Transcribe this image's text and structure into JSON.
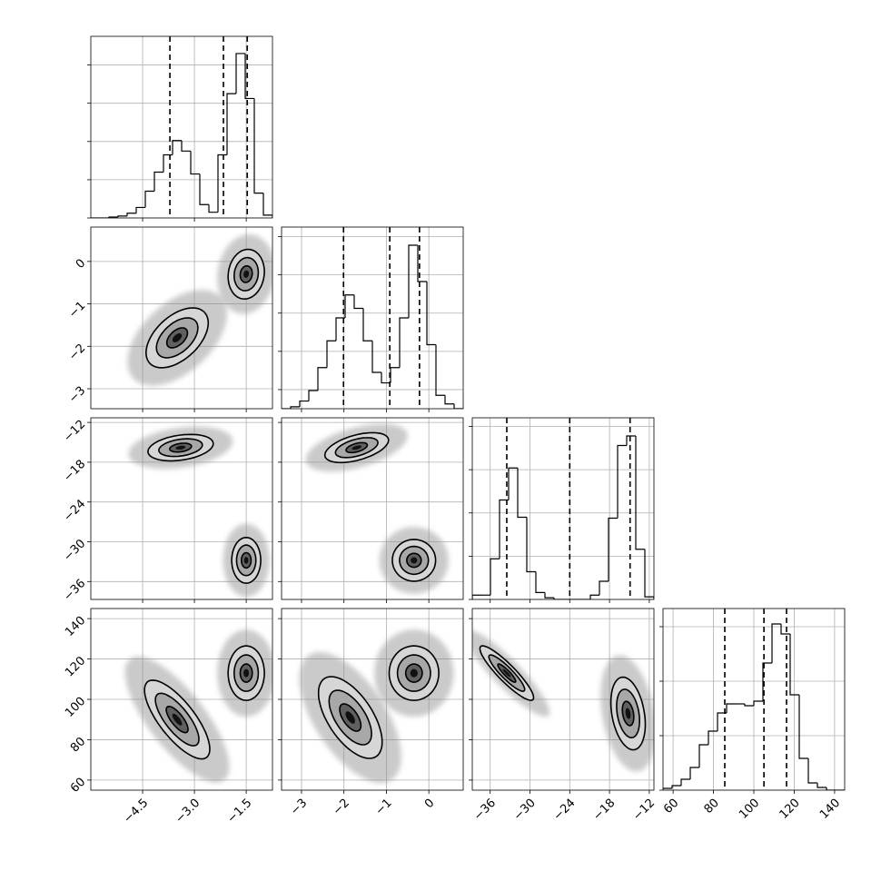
{
  "chart_data": {
    "type": "corner",
    "levels": [
      0.5,
      1.0,
      1.5
    ],
    "params": [
      {
        "lim": [
          -6.0,
          -0.74
        ],
        "ticks": [
          {
            "value": -4.5,
            "label": "−4.5"
          },
          {
            "value": -3.0,
            "label": "−3.0"
          },
          {
            "value": -1.5,
            "label": "−1.5"
          }
        ]
      },
      {
        "lim": [
          -3.47,
          0.81
        ],
        "ticks": [
          {
            "value": -3,
            "label": "−3"
          },
          {
            "value": -2,
            "label": "−2"
          },
          {
            "value": -1,
            "label": "−1"
          },
          0
        ]
      },
      {
        "lim": [
          -38.7,
          -11.3
        ],
        "ticks": [
          {
            "value": -36,
            "label": "−36"
          },
          {
            "value": -30,
            "label": "−30"
          },
          {
            "value": -24,
            "label": "−24"
          },
          {
            "value": -18,
            "label": "−18"
          },
          {
            "value": -12,
            "label": "−12"
          }
        ]
      },
      {
        "lim": [
          55,
          145
        ],
        "ticks": [
          60,
          80,
          100,
          120,
          140
        ]
      }
    ],
    "hists": [
      {
        "bins": [
          -6.0,
          -5.737,
          -5.474,
          -5.211,
          -4.948,
          -4.685,
          -4.422,
          -4.159,
          -3.896,
          -3.633,
          -3.37,
          -3.107,
          -2.844,
          -2.581,
          -2.318,
          -2.055,
          -1.792,
          -1.529,
          -1.266,
          -1.003,
          -0.74
        ],
        "counts": [
          0,
          0,
          1,
          2,
          5,
          11,
          28,
          48,
          66,
          81,
          70,
          46,
          14,
          6,
          66,
          130,
          172,
          125,
          26,
          3
        ],
        "quantiles": [
          -3.71,
          -2.16,
          -1.47
        ],
        "ylim": [
          0,
          190
        ],
        "yticks": [
          0,
          40,
          80,
          120,
          160
        ]
      },
      {
        "bins": [
          -3.47,
          -3.256,
          -3.042,
          -2.828,
          -2.614,
          -2.4,
          -2.186,
          -1.972,
          -1.758,
          -1.544,
          -1.33,
          -1.116,
          -0.902,
          -0.688,
          -0.474,
          -0.26,
          -0.046,
          0.168,
          0.382,
          0.596,
          0.81
        ],
        "counts": [
          0,
          2,
          8,
          19,
          43,
          71,
          95,
          119,
          105,
          71,
          38,
          27,
          43,
          95,
          171,
          133,
          67,
          14,
          5,
          0
        ],
        "quantiles": [
          -2.01,
          -0.92,
          -0.22
        ],
        "ylim": [
          0,
          190
        ],
        "yticks": [
          20,
          60,
          100,
          140,
          180
        ]
      },
      {
        "bins": [
          -38.7,
          -37.33,
          -35.96,
          -34.59,
          -33.22,
          -31.85,
          -30.48,
          -29.11,
          -27.74,
          -26.37,
          -25.0,
          -23.63,
          -22.26,
          -20.89,
          -19.52,
          -18.15,
          -16.78,
          -15.41,
          -14.04,
          -12.67,
          -11.3
        ],
        "counts": [
          5,
          5,
          47,
          115,
          152,
          95,
          32,
          8,
          2,
          0,
          0,
          0,
          0,
          5,
          21,
          94,
          178,
          189,
          58,
          3
        ],
        "quantiles": [
          -33.5,
          -24.0,
          -14.9
        ],
        "ylim": [
          0,
          210
        ],
        "yticks": [
          0,
          50,
          100,
          150,
          200
        ]
      },
      {
        "bins": [
          55,
          59.5,
          64,
          68.5,
          73,
          77.5,
          82,
          86.5,
          91,
          95.5,
          100,
          104.5,
          109,
          113.5,
          118,
          122.5,
          127,
          131.5,
          136,
          140.5,
          145
        ],
        "counts": [
          2,
          5,
          12,
          25,
          50,
          65,
          85,
          95,
          95,
          93,
          98,
          140,
          183,
          172,
          105,
          35,
          8,
          3,
          0,
          0
        ],
        "quantiles": [
          85.6,
          105.0,
          116.2
        ],
        "ylim": [
          0,
          200
        ],
        "yticks": [
          0,
          60,
          120,
          180
        ]
      }
    ],
    "pairs": [
      [
        [
          {
            "center": [
              -3.5,
              -1.8
            ],
            "sigma": [
              0.6,
              0.47
            ],
            "rho": 0.5
          },
          {
            "center": [
              -1.5,
              -0.3
            ],
            "sigma": [
              0.35,
              0.39
            ],
            "rho": 0.1
          }
        ]
      ],
      [
        [
          {
            "center": [
              -3.4,
              -15.8
            ],
            "sigma": [
              0.63,
              1.33
            ],
            "rho": 0.3
          },
          {
            "center": [
              -1.5,
              -32.8
            ],
            "sigma": [
              0.28,
              2.3
            ],
            "rho": 0.0
          }
        ],
        [
          {
            "center": [
              -1.7,
              -15.8
            ],
            "sigma": [
              0.5,
              1.5
            ],
            "rho": 0.5
          },
          {
            "center": [
              -0.35,
              -32.8
            ],
            "sigma": [
              0.34,
              2.1
            ],
            "rho": 0.0
          }
        ]
      ],
      [
        [
          {
            "center": [
              -3.5,
              90
            ],
            "sigma": [
              0.63,
              13
            ],
            "rho": -0.75
          },
          {
            "center": [
              -1.5,
              113
            ],
            "sigma": [
              0.35,
              9
            ],
            "rho": 0.0
          }
        ],
        [
          {
            "center": [
              -1.85,
              91
            ],
            "sigma": [
              0.5,
              13.5
            ],
            "rho": -0.6
          },
          {
            "center": [
              -0.35,
              113
            ],
            "sigma": [
              0.39,
              9
            ],
            "rho": 0.0
          }
        ],
        [
          {
            "center": [
              -33.5,
              113
            ],
            "sigma": [
              2.7,
              9
            ],
            "rho": -0.9
          },
          {
            "center": [
              -15.2,
              93
            ],
            "sigma": [
              1.73,
              12
            ],
            "rho": -0.3
          }
        ]
      ]
    ]
  }
}
